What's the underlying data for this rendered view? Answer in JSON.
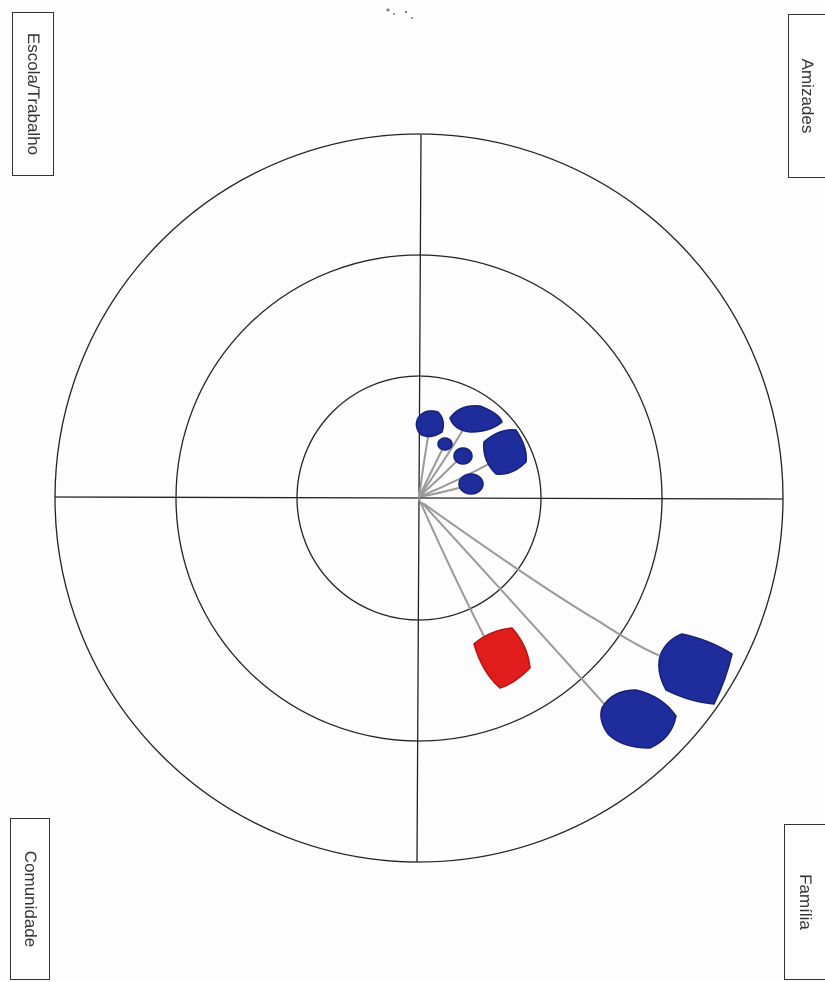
{
  "quadrants": {
    "top_left": "Escola/Trabalho",
    "top_right": "Amizades",
    "bottom_left": "Comunidade",
    "bottom_right": "Família"
  },
  "colors": {
    "ink": "#222222",
    "connector": "#9a9a9a",
    "marker_blue": "#1f2c9c",
    "marker_red": "#e01c1c"
  }
}
